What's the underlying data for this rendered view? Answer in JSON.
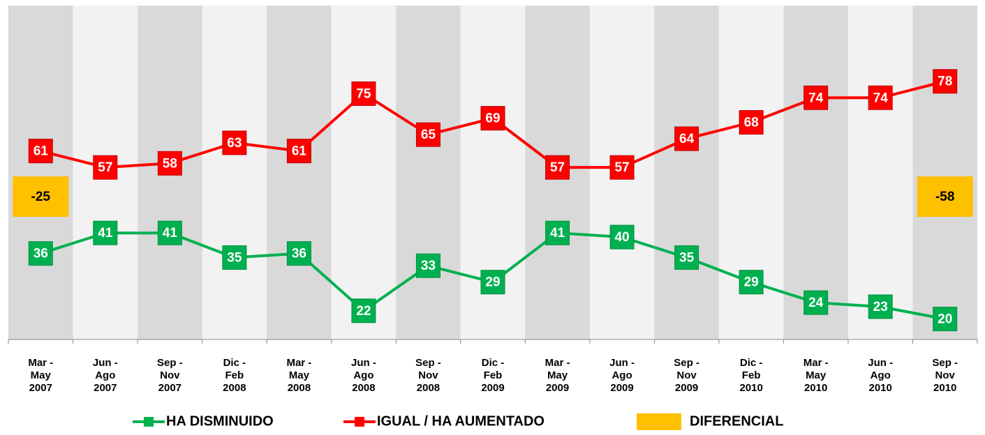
{
  "chart_data": {
    "type": "line",
    "categories": [
      [
        "Mar -",
        "May",
        "2007"
      ],
      [
        "Jun -",
        "Ago",
        "2007"
      ],
      [
        "Sep -",
        "Nov",
        "2007"
      ],
      [
        "Dic -",
        "Feb",
        "2008"
      ],
      [
        "Mar -",
        "May",
        "2008"
      ],
      [
        "Jun -",
        "Ago",
        "2008"
      ],
      [
        "Sep -",
        "Nov",
        "2008"
      ],
      [
        "Dic -",
        "Feb",
        "2009"
      ],
      [
        "Mar -",
        "May",
        "2009"
      ],
      [
        "Jun -",
        "Ago",
        "2009"
      ],
      [
        "Sep -",
        "Nov",
        "2009"
      ],
      [
        "Dic -",
        "Feb",
        "2010"
      ],
      [
        "Mar -",
        "May",
        "2010"
      ],
      [
        "Jun -",
        "Ago",
        "2010"
      ],
      [
        "Sep -",
        "Nov",
        "2010"
      ]
    ],
    "series": [
      {
        "name": "HA DISMINUIDO",
        "color": "#00b050",
        "values": [
          36,
          41,
          41,
          35,
          36,
          22,
          33,
          29,
          41,
          40,
          35,
          29,
          24,
          23,
          20
        ]
      },
      {
        "name": "IGUAL / HA AUMENTADO",
        "color": "#ff0000",
        "values": [
          61,
          57,
          58,
          63,
          61,
          75,
          65,
          69,
          57,
          57,
          64,
          68,
          74,
          74,
          78
        ]
      }
    ],
    "difference": {
      "name": "DIFERENCIAL",
      "color": "#ffc000",
      "values": [
        -25,
        null,
        null,
        null,
        null,
        null,
        null,
        null,
        null,
        null,
        null,
        null,
        null,
        null,
        -58
      ]
    },
    "ylim": [
      15,
      96.5
    ]
  }
}
